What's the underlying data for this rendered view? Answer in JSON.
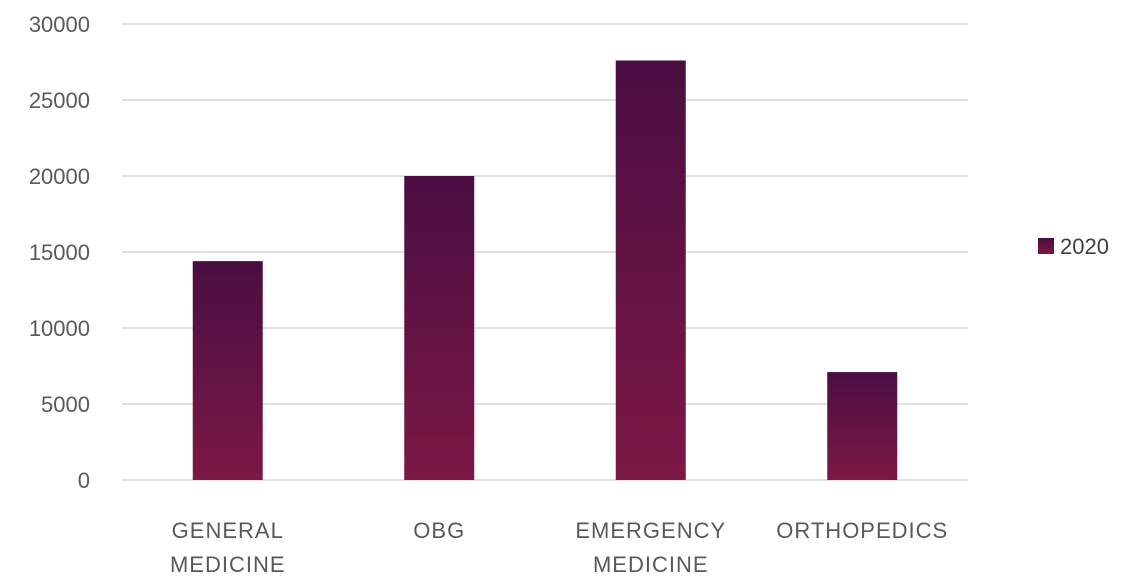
{
  "chart_data": {
    "type": "bar",
    "categories": [
      [
        "GENERAL",
        "MEDICINE"
      ],
      [
        "OBG"
      ],
      [
        "EMERGENCY",
        "MEDICINE"
      ],
      [
        "ORTHOPEDICS"
      ]
    ],
    "series": [
      {
        "name": "2020",
        "values": [
          14400,
          20000,
          27600,
          7100
        ]
      }
    ],
    "ylim": [
      0,
      30000
    ],
    "yticks": [
      0,
      5000,
      10000,
      15000,
      20000,
      25000,
      30000
    ],
    "grid": true,
    "legend_position": "right",
    "colors": {
      "bar_top": "#4a0e42",
      "bar_bottom": "#7c1845",
      "grid": "#d9d9d9",
      "text": "#595959"
    }
  }
}
